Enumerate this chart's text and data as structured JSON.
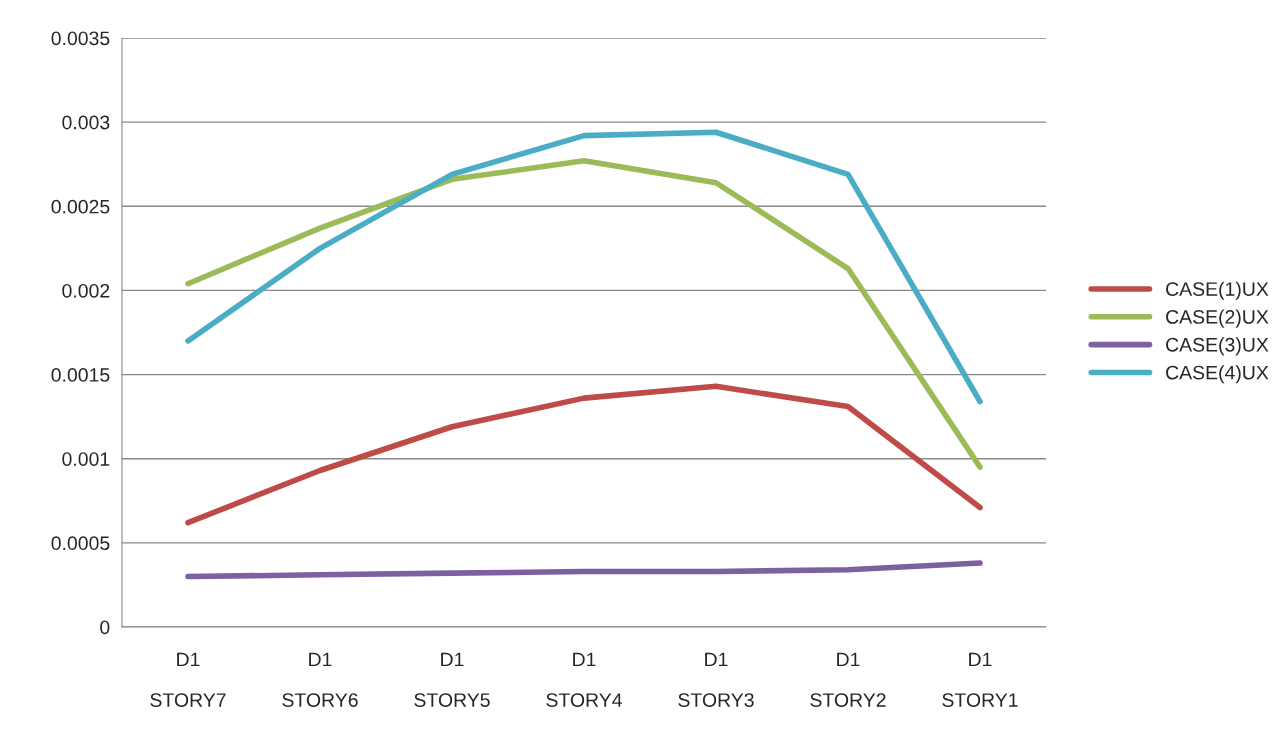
{
  "chart_data": {
    "type": "line",
    "categories": [
      "D1\nSTORY7",
      "D1\nSTORY6",
      "D1\nSTORY5",
      "D1\nSTORY4",
      "D1\nSTORY3",
      "D1\nSTORY2",
      "D1\nSTORY1"
    ],
    "series": [
      {
        "name": "CASE(1)UX",
        "color": "#be4b48",
        "values": [
          0.00062,
          0.00093,
          0.00119,
          0.00136,
          0.00143,
          0.00131,
          0.00071
        ]
      },
      {
        "name": "CASE(2)UX",
        "color": "#9bbb59",
        "values": [
          0.00204,
          0.00237,
          0.00266,
          0.00277,
          0.00264,
          0.00213,
          0.00095
        ]
      },
      {
        "name": "CASE(3)UX",
        "color": "#7d60a0",
        "values": [
          0.0003,
          0.00031,
          0.00032,
          0.00033,
          0.00033,
          0.00034,
          0.00038
        ]
      },
      {
        "name": "CASE(4)UX",
        "color": "#4bacc6",
        "values": [
          0.0017,
          0.00225,
          0.00269,
          0.00292,
          0.00294,
          0.00269,
          0.00134
        ]
      }
    ],
    "ylim": [
      0,
      0.0035
    ],
    "yticks": [
      0,
      0.0005,
      0.001,
      0.0015,
      0.002,
      0.0025,
      0.003,
      0.0035
    ],
    "grid": "y",
    "legend": "right",
    "marker": "none",
    "line_style": "solid"
  }
}
